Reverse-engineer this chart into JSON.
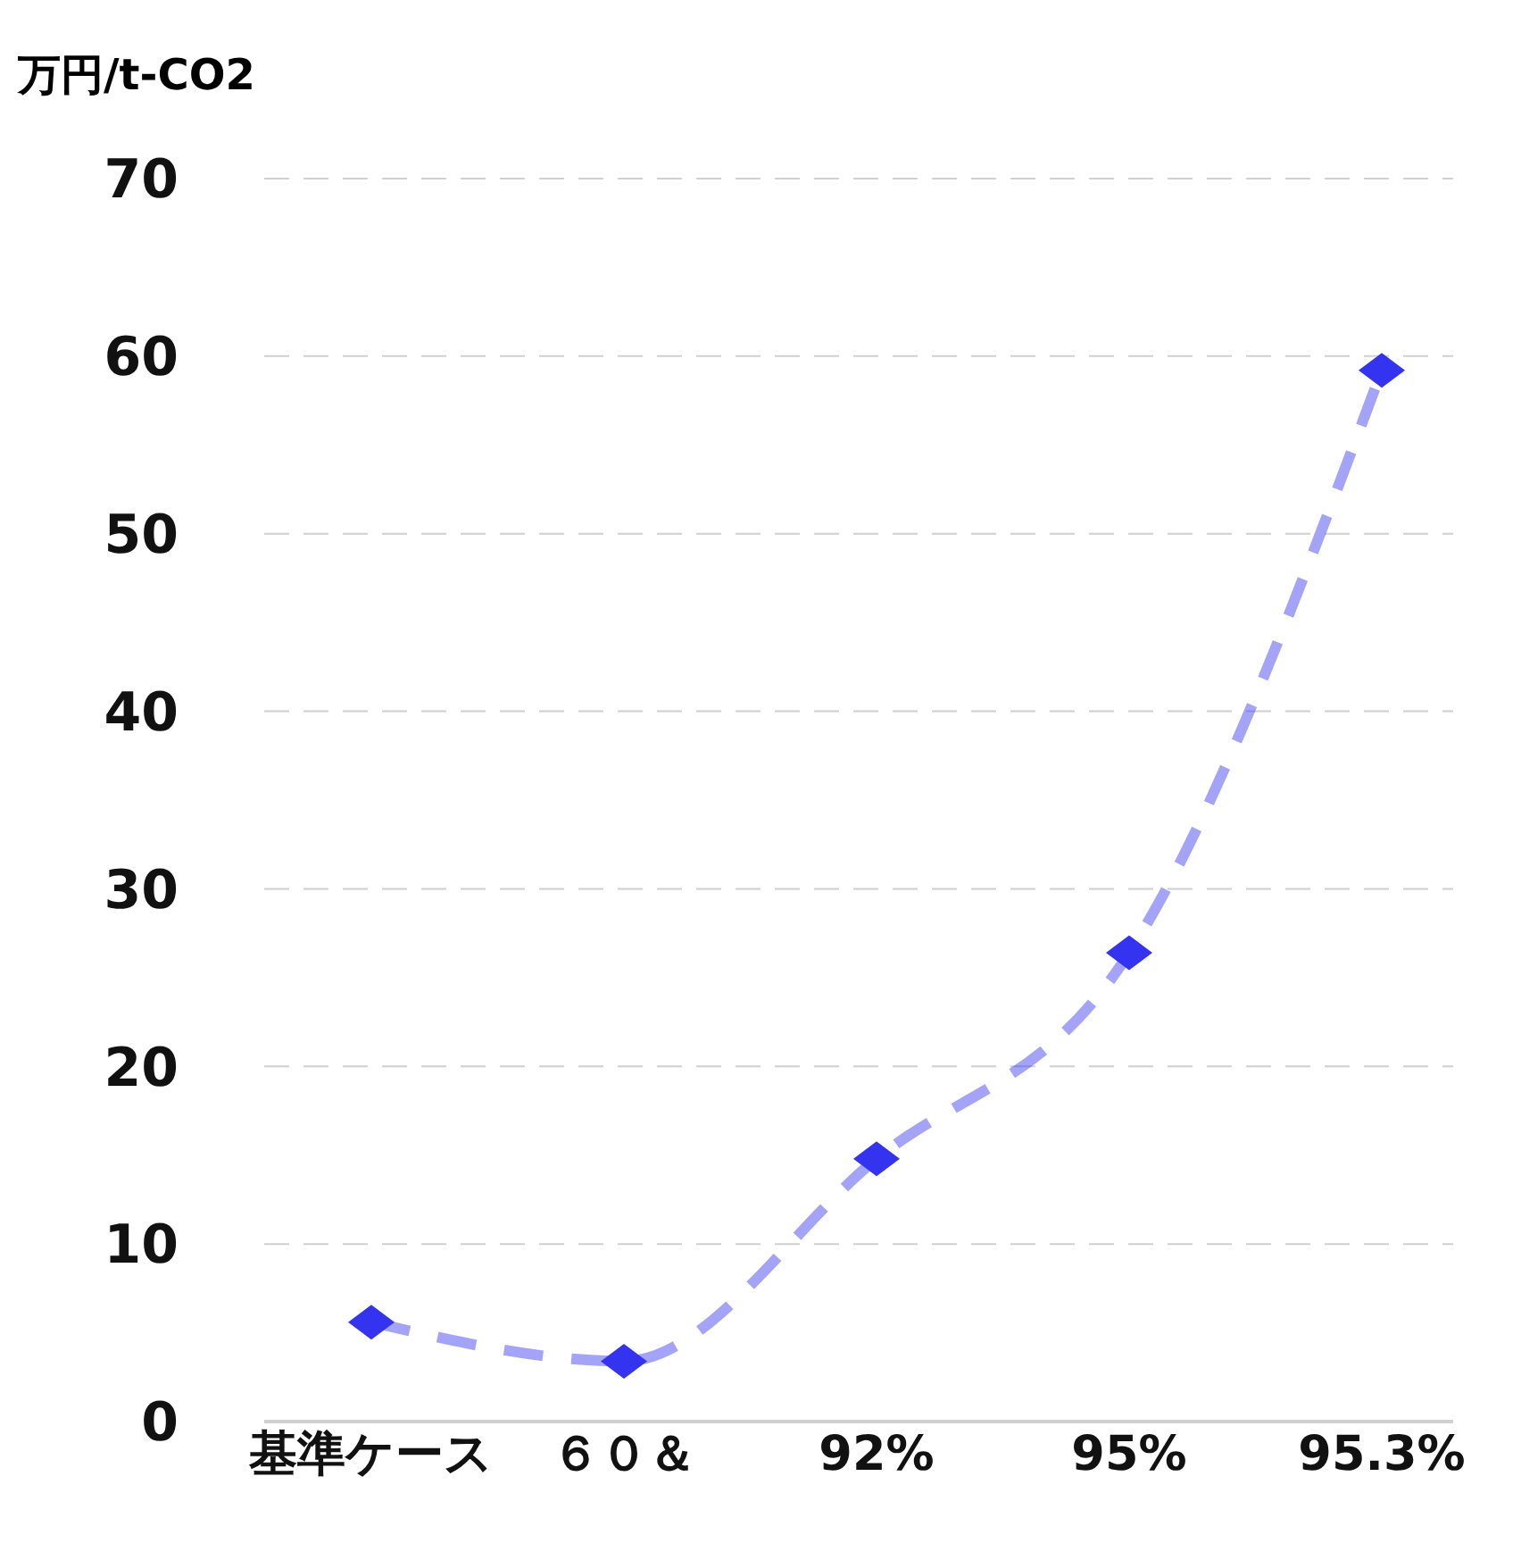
{
  "chart_data": {
    "type": "line",
    "ylabel": "万円/t-CO2",
    "categories": [
      "基準ケース",
      "６０＆",
      "92%",
      "95%",
      "95.3%"
    ],
    "series": [
      {
        "color": "#3434f0",
        "values": [
          5.6,
          3.4,
          14.8,
          26.4,
          59.2
        ]
      }
    ],
    "ylim": [
      0,
      70
    ],
    "yticks": [
      0,
      10,
      20,
      30,
      40,
      50,
      60,
      70
    ],
    "grid": "y",
    "legend": false,
    "marker": "diamond",
    "line_style": "dashed"
  }
}
